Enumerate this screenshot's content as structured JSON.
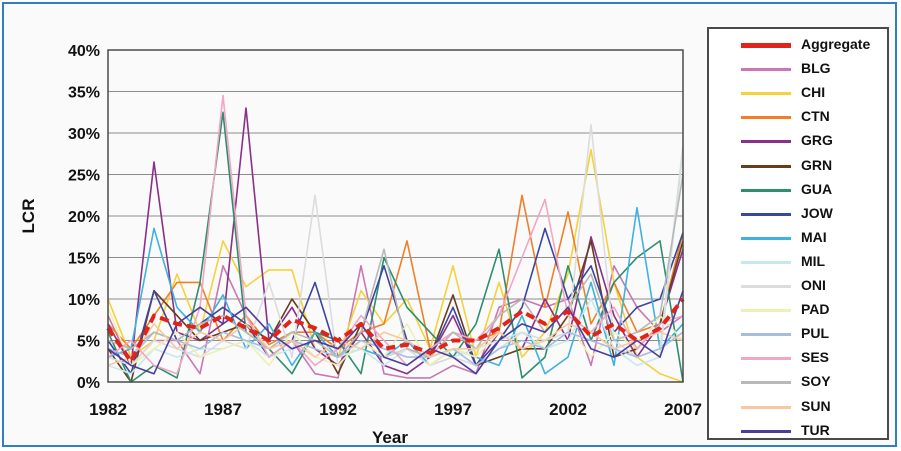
{
  "chart_data": {
    "type": "line",
    "xlabel": "Year",
    "ylabel": "LCR",
    "ylim": [
      0,
      40
    ],
    "y_ticks": [
      "0%",
      "5%",
      "10%",
      "15%",
      "20%",
      "25%",
      "30%",
      "35%",
      "40%"
    ],
    "x_ticks": [
      "1982",
      "1987",
      "1992",
      "1997",
      "2002",
      "2007"
    ],
    "x": [
      1982,
      1983,
      1984,
      1985,
      1986,
      1987,
      1988,
      1989,
      1990,
      1991,
      1992,
      1993,
      1994,
      1995,
      1996,
      1997,
      1998,
      1999,
      2000,
      2001,
      2002,
      2003,
      2004,
      2005,
      2006,
      2007
    ],
    "grid": true,
    "legend_position": "right",
    "series": [
      {
        "name": "Aggregate",
        "color": "#e2231a",
        "values": [
          6.5,
          2.5,
          8.0,
          7.0,
          6.5,
          8.0,
          6.5,
          5.0,
          7.5,
          6.5,
          5.0,
          7.0,
          4.0,
          4.5,
          3.5,
          5.0,
          5.0,
          6.5,
          8.5,
          7.0,
          8.5,
          5.5,
          7.0,
          5.0,
          6.5,
          10.0
        ]
      },
      {
        "name": "BLG",
        "color": "#c878b4",
        "values": [
          8.0,
          2.0,
          5.0,
          5.0,
          1.0,
          14.0,
          8.0,
          3.0,
          5.0,
          1.0,
          0.5,
          14.0,
          1.0,
          0.5,
          0.5,
          2.0,
          1.0,
          9.0,
          10.0,
          9.0,
          10.0,
          2.0,
          14.0,
          9.0,
          6.0,
          8.0
        ]
      },
      {
        "name": "CHI",
        "color": "#f4d23a",
        "values": [
          10.0,
          3.0,
          5.0,
          13.0,
          6.0,
          17.0,
          11.5,
          13.5,
          13.5,
          4.0,
          3.0,
          11.0,
          7.0,
          10.0,
          4.0,
          14.0,
          3.0,
          12.0,
          3.0,
          6.0,
          13.0,
          28.0,
          12.0,
          3.0,
          1.0,
          0.0
        ]
      },
      {
        "name": "CTN",
        "color": "#f07f2a",
        "values": [
          7.0,
          4.0,
          8.0,
          12.0,
          12.0,
          5.0,
          8.0,
          4.5,
          6.0,
          6.0,
          4.0,
          6.0,
          7.0,
          17.0,
          4.0,
          6.0,
          5.0,
          6.0,
          22.5,
          9.0,
          20.5,
          7.0,
          12.0,
          6.0,
          7.0,
          18.0
        ]
      },
      {
        "name": "GRG",
        "color": "#8a2f8a",
        "values": [
          7.0,
          2.0,
          26.5,
          6.0,
          5.0,
          7.0,
          33.0,
          5.0,
          9.0,
          4.0,
          2.0,
          6.0,
          2.0,
          1.0,
          3.0,
          8.0,
          2.0,
          6.0,
          4.0,
          10.0,
          5.0,
          17.5,
          8.0,
          3.0,
          7.0,
          16.0
        ]
      },
      {
        "name": "GRN",
        "color": "#6a3c1e",
        "values": [
          4.0,
          0.0,
          11.0,
          8.0,
          5.0,
          6.0,
          7.0,
          5.0,
          10.0,
          6.0,
          1.0,
          7.0,
          3.0,
          4.0,
          3.0,
          10.5,
          2.0,
          3.0,
          4.0,
          4.0,
          8.0,
          17.0,
          3.0,
          4.0,
          7.0,
          17.0
        ]
      },
      {
        "name": "GUA",
        "color": "#2e8f70",
        "values": [
          6.0,
          0.0,
          2.0,
          0.5,
          12.0,
          32.5,
          6.0,
          4.0,
          1.0,
          6.0,
          5.0,
          1.0,
          15.0,
          9.0,
          6.0,
          3.0,
          7.0,
          16.0,
          0.5,
          3.0,
          14.0,
          5.0,
          12.0,
          15.0,
          17.0,
          0.0
        ]
      },
      {
        "name": "JOW",
        "color": "#3a47a0",
        "values": [
          5.0,
          1.0,
          11.0,
          5.0,
          7.0,
          9.0,
          7.0,
          3.0,
          5.0,
          12.0,
          3.0,
          6.0,
          14.0,
          5.0,
          3.0,
          9.0,
          2.0,
          5.0,
          9.0,
          18.5,
          10.0,
          14.0,
          6.0,
          9.0,
          10.0,
          18.0
        ]
      },
      {
        "name": "MAI",
        "color": "#3fb2e0",
        "values": [
          3.0,
          4.0,
          18.5,
          9.0,
          6.0,
          10.5,
          4.0,
          7.0,
          2.0,
          6.0,
          3.0,
          4.0,
          3.0,
          5.0,
          2.0,
          4.0,
          3.0,
          2.0,
          8.0,
          1.0,
          3.0,
          12.0,
          2.0,
          21.0,
          4.0,
          7.0
        ]
      },
      {
        "name": "MIL",
        "color": "#c6e8ef",
        "values": [
          2.0,
          1.0,
          4.0,
          3.0,
          4.0,
          4.0,
          5.0,
          3.0,
          4.0,
          5.0,
          3.0,
          4.0,
          2.0,
          4.0,
          2.0,
          3.0,
          4.0,
          5.0,
          6.0,
          4.0,
          5.0,
          10.0,
          4.0,
          2.0,
          3.0,
          28.0
        ]
      },
      {
        "name": "ONI",
        "color": "#dcdcdc",
        "values": [
          3.0,
          2.0,
          5.0,
          4.0,
          3.0,
          5.0,
          4.0,
          12.0,
          3.0,
          22.5,
          2.0,
          5.0,
          3.0,
          4.0,
          2.0,
          3.0,
          2.0,
          4.0,
          6.0,
          5.0,
          6.0,
          31.0,
          5.0,
          3.0,
          4.0,
          28.5
        ]
      },
      {
        "name": "PAD",
        "color": "#eef0b4",
        "values": [
          9.0,
          2.0,
          4.0,
          6.0,
          3.0,
          4.0,
          5.0,
          2.0,
          6.0,
          3.0,
          2.0,
          5.0,
          3.0,
          7.0,
          2.0,
          4.0,
          3.0,
          6.0,
          4.0,
          5.0,
          7.0,
          3.0,
          6.0,
          4.0,
          8.0,
          5.0
        ]
      },
      {
        "name": "PUL",
        "color": "#a6bde2",
        "values": [
          4.0,
          3.0,
          6.0,
          5.0,
          4.0,
          6.0,
          5.0,
          4.0,
          5.0,
          4.0,
          3.0,
          5.0,
          4.0,
          3.0,
          3.0,
          4.0,
          2.0,
          4.0,
          5.0,
          4.0,
          6.0,
          5.0,
          4.0,
          3.0,
          4.0,
          6.0
        ]
      },
      {
        "name": "SES",
        "color": "#f4a4c4",
        "values": [
          3.0,
          5.0,
          2.0,
          1.0,
          9.0,
          34.5,
          8.0,
          3.0,
          5.0,
          2.0,
          4.0,
          8.0,
          5.0,
          2.0,
          4.0,
          6.0,
          5.0,
          8.0,
          15.0,
          22.0,
          8.0,
          6.0,
          9.0,
          4.0,
          7.0,
          8.0
        ]
      },
      {
        "name": "SOY",
        "color": "#b8b8b8",
        "values": [
          5.0,
          4.0,
          6.0,
          5.0,
          7.0,
          8.0,
          6.0,
          4.0,
          6.0,
          5.0,
          3.0,
          6.0,
          16.0,
          4.0,
          3.0,
          6.0,
          4.0,
          8.0,
          10.0,
          6.0,
          9.0,
          13.0,
          5.0,
          6.0,
          8.0,
          25.0
        ]
      },
      {
        "name": "SUN",
        "color": "#f8c8a0",
        "values": [
          2.0,
          3.0,
          7.0,
          4.0,
          6.0,
          5.0,
          7.0,
          4.0,
          5.0,
          3.0,
          5.0,
          4.0,
          6.0,
          5.0,
          3.0,
          4.0,
          4.0,
          6.0,
          4.0,
          5.0,
          7.0,
          6.0,
          4.0,
          5.0,
          6.0,
          5.0
        ]
      },
      {
        "name": "TUR",
        "color": "#4c3c9c",
        "values": [
          4.0,
          2.0,
          1.0,
          7.0,
          9.0,
          7.0,
          9.0,
          6.0,
          4.0,
          5.0,
          4.0,
          7.0,
          3.0,
          2.0,
          4.0,
          3.0,
          1.0,
          5.0,
          7.0,
          6.0,
          9.0,
          4.0,
          3.0,
          5.0,
          3.0,
          11.0
        ]
      }
    ]
  }
}
